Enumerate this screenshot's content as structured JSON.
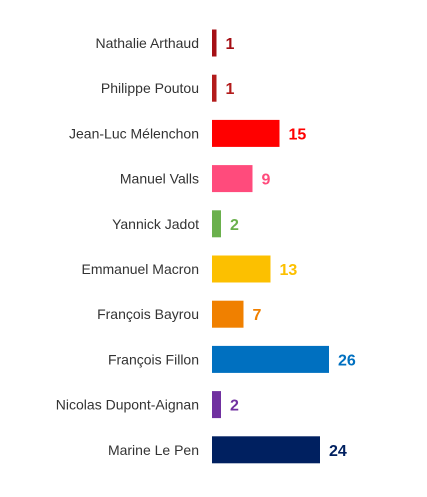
{
  "chart_data": {
    "type": "bar",
    "orientation": "horizontal",
    "title": "",
    "xlabel": "",
    "ylabel": "",
    "grid": false,
    "legend": "none",
    "xlim": [
      0,
      26
    ],
    "categories": [
      "Nathalie Arthaud",
      "Philippe Poutou",
      "Jean-Luc Mélenchon",
      "Manuel Valls",
      "Yannick Jadot",
      "Emmanuel Macron",
      "François Bayrou",
      "François Fillon",
      "Nicolas Dupont-Aignan",
      "Marine Le Pen"
    ],
    "values": [
      1,
      1,
      15,
      9,
      2,
      13,
      7,
      26,
      2,
      24
    ],
    "colors": [
      "#a50f15",
      "#b31b1b",
      "#ff0000",
      "#ff4b7c",
      "#6ab04c",
      "#fcc000",
      "#f08000",
      "#0070c0",
      "#7030a0",
      "#002060"
    ]
  }
}
